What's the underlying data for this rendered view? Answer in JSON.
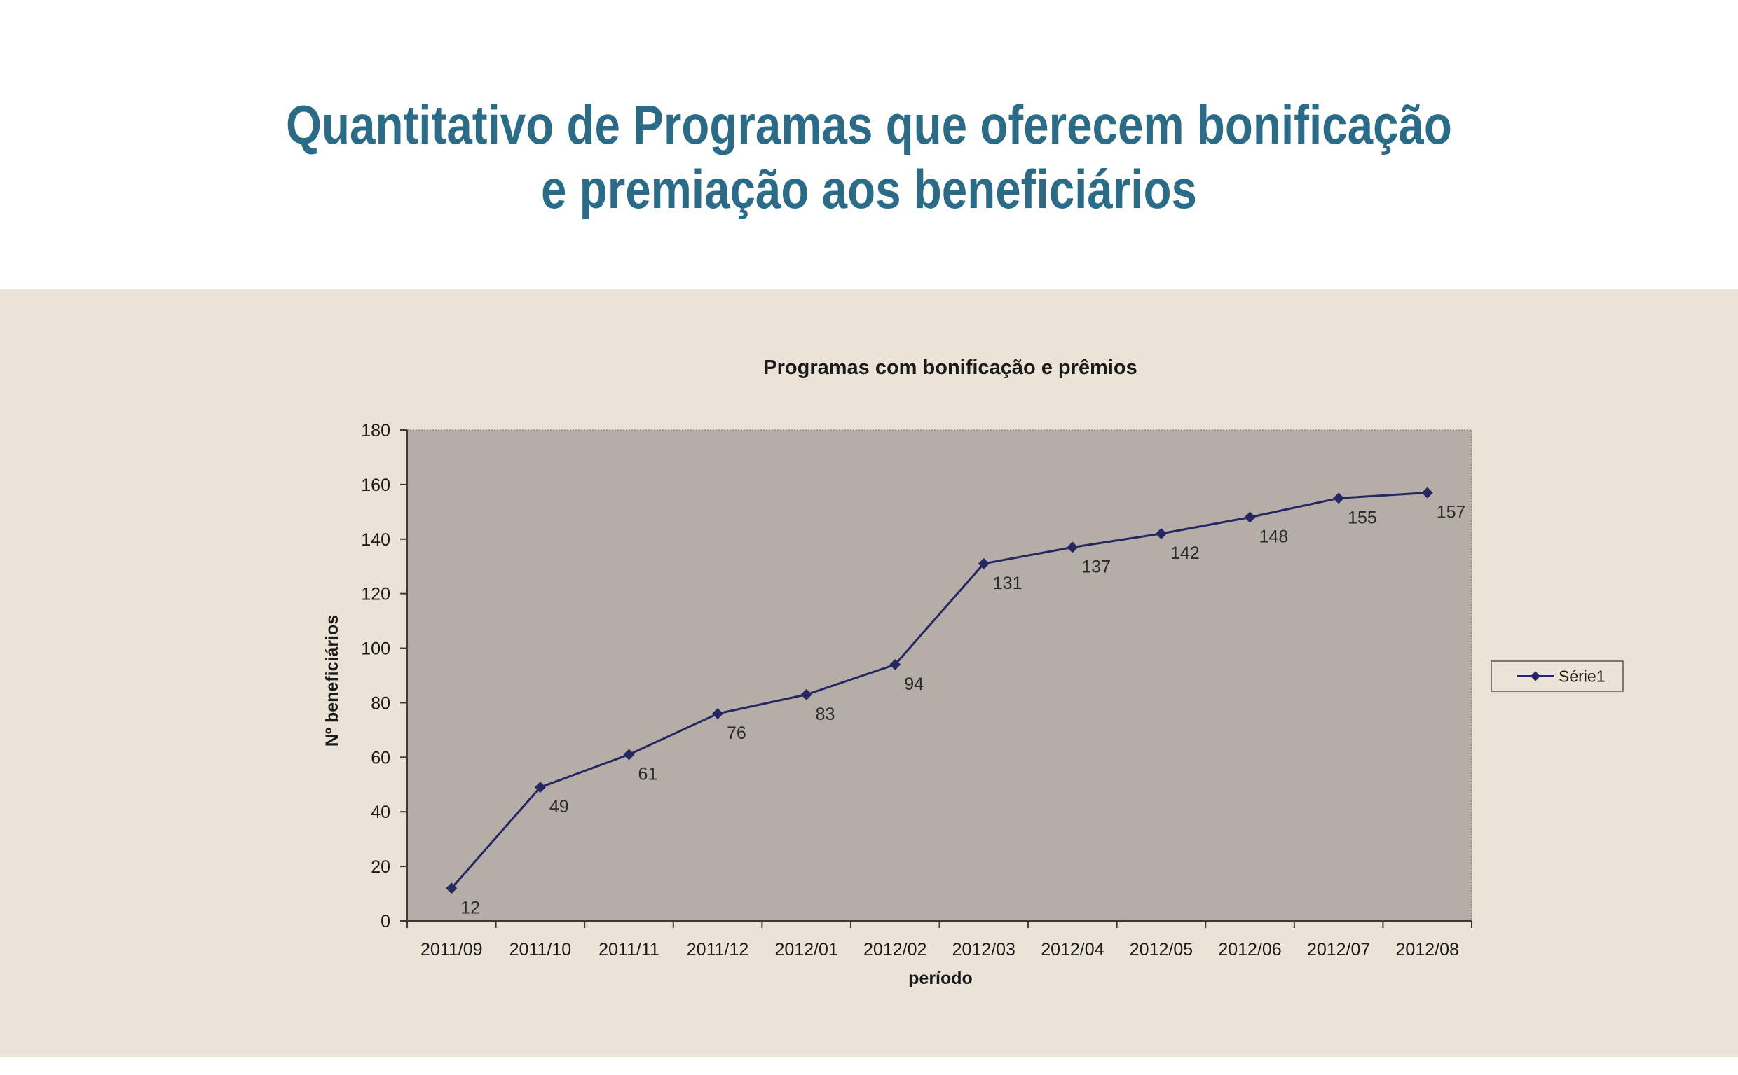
{
  "page": {
    "title_line1": "Quantitativo de Programas que oferecem bonificação",
    "title_line2": "e premiação aos beneficiários"
  },
  "colors": {
    "title": "#2a6c88",
    "panel_bg": "#ebe4d6",
    "plot_bg": "#b5aea7",
    "series": "#262663"
  },
  "chart_data": {
    "type": "line",
    "title": "Programas com bonificação e prêmios",
    "xlabel": "período",
    "ylabel": "Nº beneficiários",
    "categories": [
      "2011/09",
      "2011/10",
      "2011/11",
      "2011/12",
      "2012/01",
      "2012/02",
      "2012/03",
      "2012/04",
      "2012/05",
      "2012/06",
      "2012/07",
      "2012/08"
    ],
    "series": [
      {
        "name": "Série1",
        "values": [
          12,
          49,
          61,
          76,
          83,
          94,
          131,
          137,
          142,
          148,
          155,
          157
        ],
        "marker": "diamond"
      }
    ],
    "ylim": [
      0,
      180
    ],
    "yticks": [
      0,
      20,
      40,
      60,
      80,
      100,
      120,
      140,
      160,
      180
    ],
    "data_labels": true,
    "legend_position": "right",
    "grid": false
  }
}
